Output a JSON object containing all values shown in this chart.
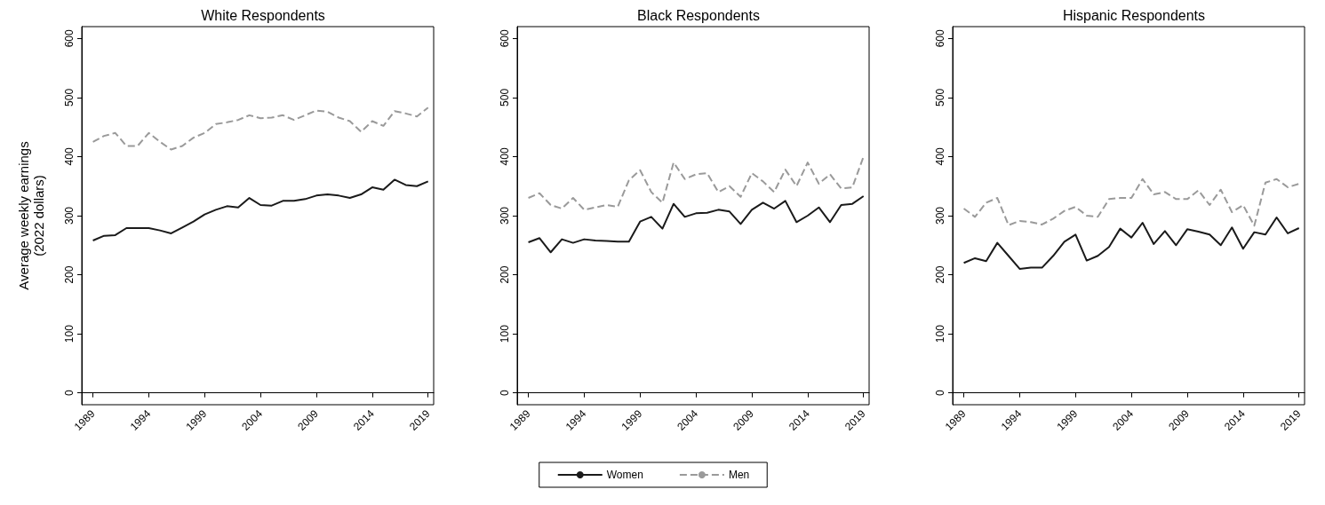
{
  "chart_data": [
    {
      "type": "line",
      "title": "White Respondents",
      "ylabel": "Average weekly earnings\n(2022 dollars)",
      "x": [
        1989,
        1990,
        1991,
        1992,
        1993,
        1994,
        1995,
        1996,
        1997,
        1998,
        1999,
        2000,
        2001,
        2002,
        2003,
        2004,
        2005,
        2006,
        2007,
        2008,
        2009,
        2010,
        2011,
        2012,
        2013,
        2014,
        2015,
        2016,
        2017,
        2018,
        2019
      ],
      "xlim": [
        1988,
        2019.5
      ],
      "xticks": [
        1989,
        1994,
        1999,
        2004,
        2009,
        2014,
        2019
      ],
      "ylim": [
        -20,
        620
      ],
      "yticks": [
        0,
        100,
        200,
        300,
        400,
        500,
        600
      ],
      "legend": false,
      "marker": "none",
      "series": [
        {
          "color": "#1a1a1a",
          "line_style": "solid",
          "values": [
            258,
            266,
            267,
            279,
            279,
            279,
            275,
            270,
            280,
            290,
            302,
            310,
            316,
            314,
            330,
            318,
            317,
            325,
            325,
            328,
            334,
            336,
            334,
            330,
            336,
            348,
            344,
            361,
            352,
            350,
            358
          ]
        },
        {
          "color": "#9a9a9a",
          "line_style": "dashed",
          "values": [
            425,
            435,
            440,
            418,
            418,
            440,
            425,
            412,
            418,
            432,
            440,
            455,
            458,
            462,
            470,
            465,
            466,
            470,
            462,
            470,
            478,
            476,
            466,
            460,
            442,
            460,
            452,
            477,
            473,
            468,
            483
          ]
        }
      ]
    },
    {
      "type": "line",
      "title": "Black Respondents",
      "x": [
        1989,
        1990,
        1991,
        1992,
        1993,
        1994,
        1995,
        1996,
        1997,
        1998,
        1999,
        2000,
        2001,
        2002,
        2003,
        2004,
        2005,
        2006,
        2007,
        2008,
        2009,
        2010,
        2011,
        2012,
        2013,
        2014,
        2015,
        2016,
        2017,
        2018,
        2019
      ],
      "xlim": [
        1988,
        2019.5
      ],
      "xticks": [
        1989,
        1994,
        1999,
        2004,
        2009,
        2014,
        2019
      ],
      "ylim": [
        -20,
        620
      ],
      "yticks": [
        0,
        100,
        200,
        300,
        400,
        500,
        600
      ],
      "legend": "bottom",
      "marker": "none",
      "series": [
        {
          "name": "Women",
          "color": "#1a1a1a",
          "line_style": "solid",
          "values": [
            255,
            262,
            238,
            260,
            254,
            260,
            258,
            257,
            256,
            256,
            290,
            298,
            278,
            320,
            298,
            304,
            305,
            310,
            307,
            286,
            310,
            322,
            312,
            325,
            289,
            300,
            314,
            289,
            318,
            320,
            333
          ]
        },
        {
          "name": "Men",
          "color": "#9a9a9a",
          "line_style": "dashed",
          "values": [
            330,
            338,
            318,
            312,
            330,
            310,
            314,
            318,
            315,
            360,
            377,
            340,
            322,
            390,
            362,
            370,
            372,
            340,
            350,
            332,
            372,
            358,
            340,
            378,
            350,
            390,
            354,
            370,
            346,
            348,
            400
          ]
        }
      ]
    },
    {
      "type": "line",
      "title": "Hispanic Respondents",
      "x": [
        1989,
        1990,
        1991,
        1992,
        1993,
        1994,
        1995,
        1996,
        1997,
        1998,
        1999,
        2000,
        2001,
        2002,
        2003,
        2004,
        2005,
        2006,
        2007,
        2008,
        2009,
        2010,
        2011,
        2012,
        2013,
        2014,
        2015,
        2016,
        2017,
        2018,
        2019
      ],
      "xlim": [
        1988,
        2019.5
      ],
      "xticks": [
        1989,
        1994,
        1999,
        2004,
        2009,
        2014,
        2019
      ],
      "ylim": [
        -20,
        620
      ],
      "yticks": [
        0,
        100,
        200,
        300,
        400,
        500,
        600
      ],
      "legend": false,
      "marker": "none",
      "series": [
        {
          "color": "#1a1a1a",
          "line_style": "solid",
          "values": [
            220,
            228,
            223,
            254,
            232,
            210,
            212,
            212,
            232,
            256,
            268,
            224,
            232,
            247,
            278,
            263,
            288,
            252,
            274,
            250,
            277,
            273,
            268,
            250,
            280,
            244,
            272,
            268,
            297,
            270,
            279
          ]
        },
        {
          "color": "#9a9a9a",
          "line_style": "dashed",
          "values": [
            312,
            298,
            322,
            330,
            284,
            291,
            289,
            285,
            295,
            308,
            315,
            300,
            298,
            328,
            330,
            330,
            362,
            336,
            340,
            328,
            328,
            343,
            318,
            344,
            306,
            318,
            283,
            356,
            362,
            348,
            354
          ]
        }
      ]
    }
  ]
}
